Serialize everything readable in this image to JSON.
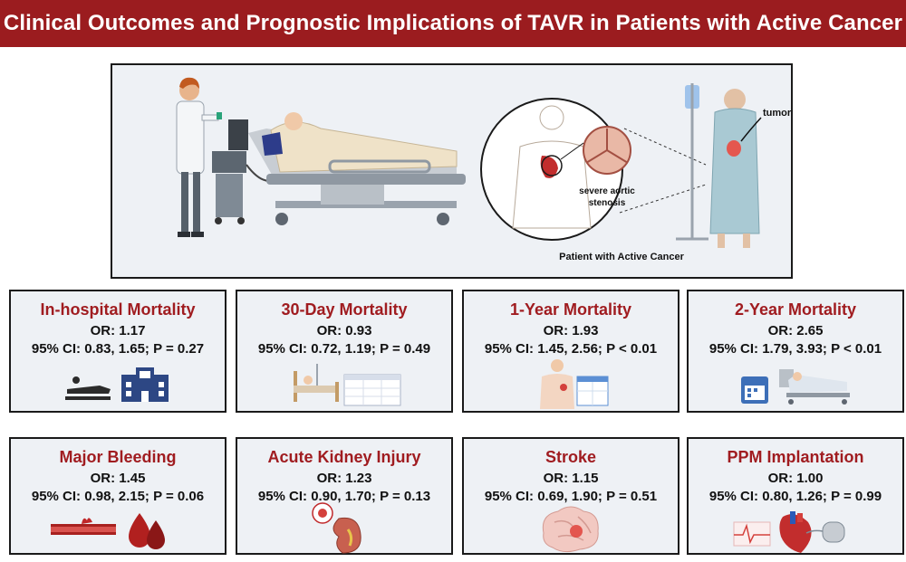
{
  "title": "Clinical Outcomes and Prognostic Implications of TAVR in Patients with Active Cancer",
  "hero": {
    "tumor_label": "tumor",
    "aortic_label_line1": "severe aortic",
    "aortic_label_line2": "stenosis",
    "patient_label": "Patient with Active Cancer"
  },
  "outcomes": [
    {
      "title": "In-hospital Mortality",
      "or": "OR: 1.17",
      "ci": "95% CI: 0.83, 1.65; P = 0.27"
    },
    {
      "title": "30-Day Mortality",
      "or": "OR: 0.93",
      "ci": "95% CI: 0.72, 1.19; P = 0.49"
    },
    {
      "title": "1-Year Mortality",
      "or": "OR: 1.93",
      "ci": "95% CI: 1.45, 2.56; P < 0.01"
    },
    {
      "title": "2-Year Mortality",
      "or": "OR: 2.65",
      "ci": "95% CI: 1.79, 3.93; P < 0.01"
    },
    {
      "title": "Major Bleeding",
      "or": "OR: 1.45",
      "ci": "95% CI: 0.98, 2.15; P = 0.06"
    },
    {
      "title": "Acute Kidney Injury",
      "or": "OR: 1.23",
      "ci": "95% CI: 0.90, 1.70; P = 0.13"
    },
    {
      "title": "Stroke",
      "or": "OR: 1.15",
      "ci": "95% CI: 0.69, 1.90; P = 0.51"
    },
    {
      "title": "PPM Implantation",
      "or": "OR: 1.00",
      "ci": "95% CI: 0.80, 1.26; P = 0.99"
    }
  ],
  "colors": {
    "banner": "#9b1c1f",
    "card_title": "#a01c20",
    "panel_bg": "#eef1f5"
  }
}
